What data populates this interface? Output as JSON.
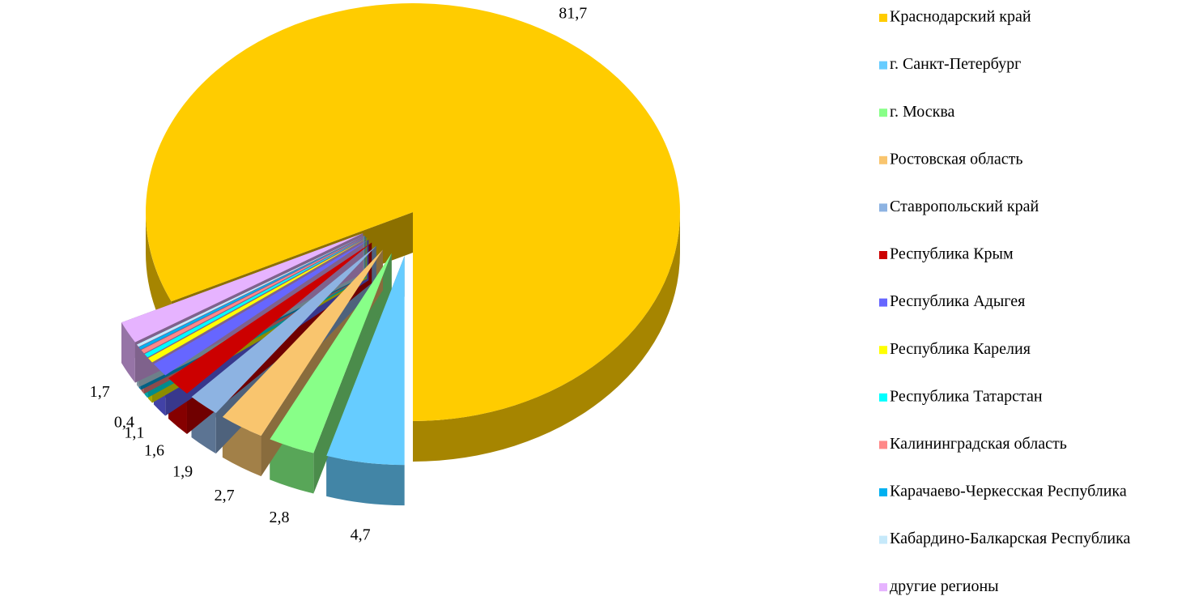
{
  "chart_data": {
    "type": "pie3d",
    "categories": [
      "Краснодарский край",
      "г. Санкт-Петербург",
      "г. Москва",
      "Ростовская область",
      "Ставропольский край",
      "Республика Крым",
      "Республика Адыгея",
      "Республика Карелия",
      "Республика Татарстан",
      "Калининградская область",
      "Карачаево-Черкесская Республика",
      "Кабардино-Балкарская Республика",
      "другие регионы"
    ],
    "values": [
      81.7,
      4.7,
      2.8,
      2.7,
      1.9,
      1.6,
      1.1,
      0.4,
      0.3,
      0.3,
      0.2,
      0.2,
      1.7
    ],
    "value_labels": [
      "81,7",
      "4,7",
      "2,8",
      "2,7",
      "1,9",
      "1,6",
      "1,1",
      "0,4",
      null,
      null,
      null,
      null,
      "1,7"
    ],
    "colors": [
      "#ffcc00",
      "#66ccff",
      "#88ff88",
      "#f9c56e",
      "#8db3e2",
      "#cc0000",
      "#6666ff",
      "#ffff00",
      "#00ffff",
      "#ff8888",
      "#00b0f0",
      "#c6e9fa",
      "#e6b3ff"
    ],
    "legend": "right"
  }
}
